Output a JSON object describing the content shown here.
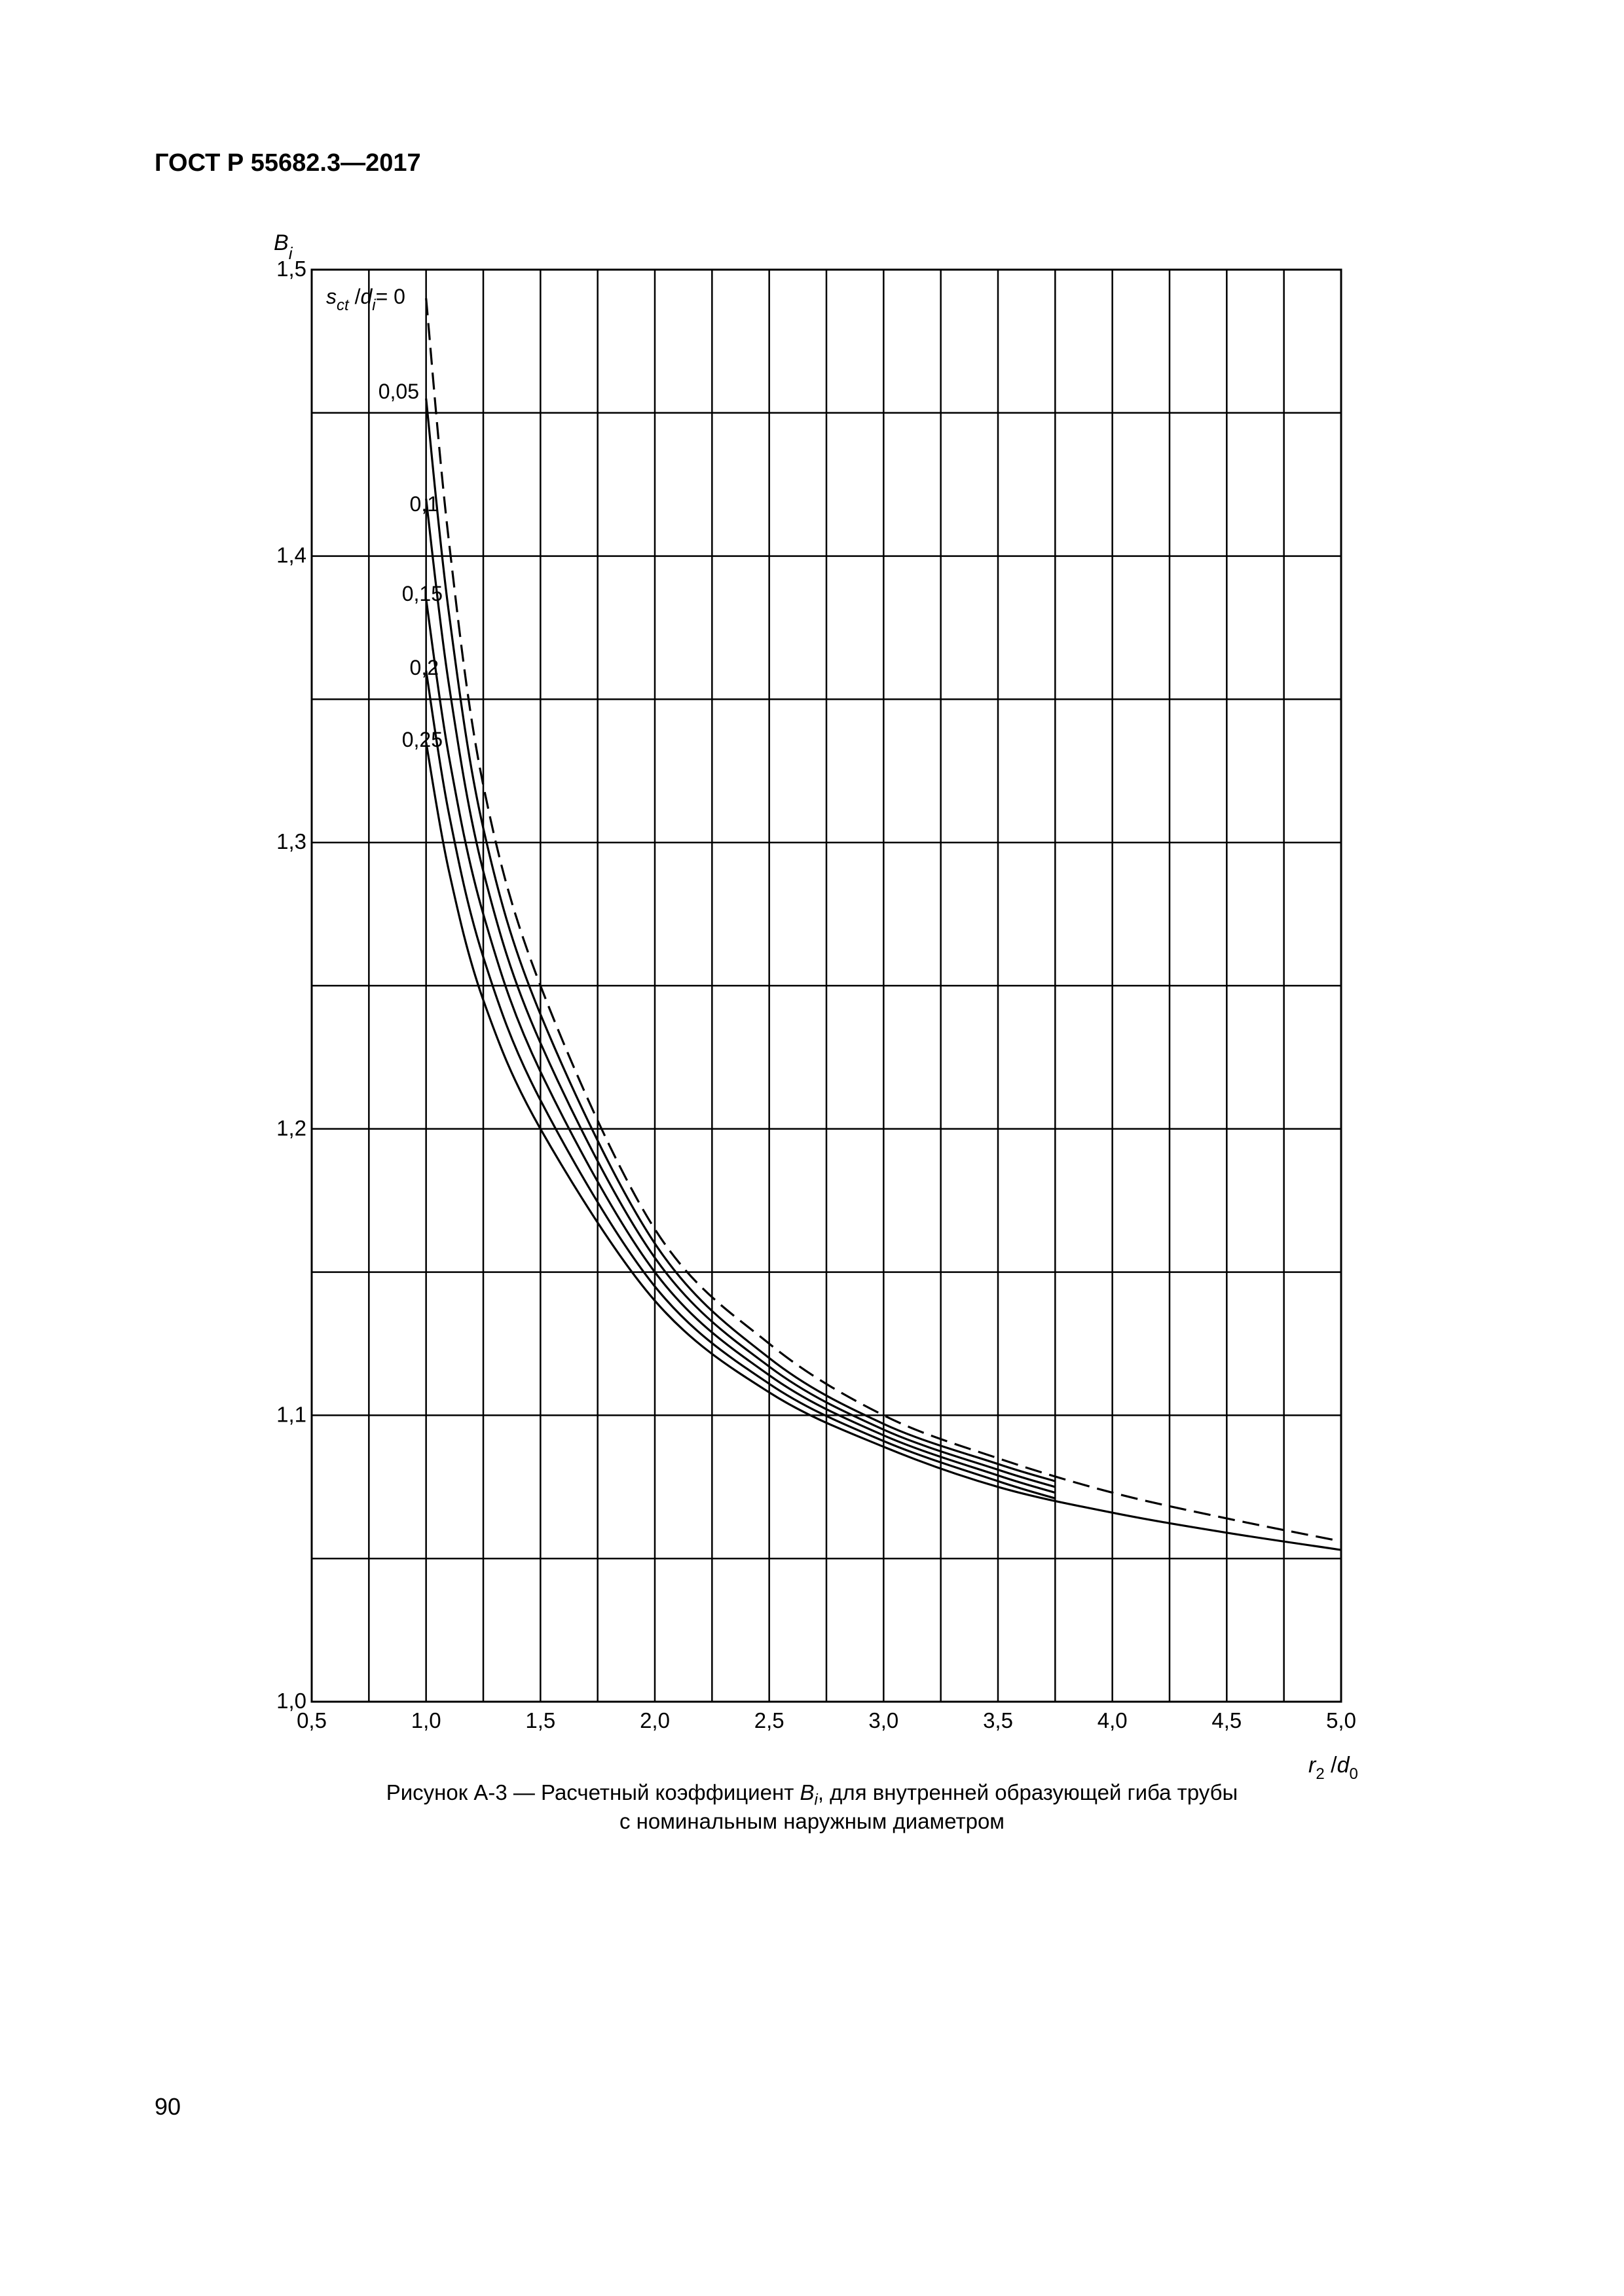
{
  "header": {
    "text": "ГОСТ Р 55682.3—2017"
  },
  "caption": {
    "line1_prefix": "Рисунок А-3 — Расчетный коэффициент ",
    "line1_symbol": "B",
    "line1_symbol_sub": "i",
    "line1_suffix": ", для внутренней образующей гиба трубы",
    "line2": "с номинальным наружным диаметром"
  },
  "page_number": "90",
  "chart_data": {
    "type": "line",
    "y_axis": {
      "symbol": "B",
      "sub": "i"
    },
    "x_axis": {
      "num": "r",
      "num_sub": "2",
      "den": "d",
      "den_sub": "0"
    },
    "legend_param": {
      "s": "s",
      "s_sub": "ct",
      "d": "d",
      "d_sub": "i",
      "eq": "= 0"
    },
    "xlim": [
      0.5,
      5.0
    ],
    "ylim": [
      1.0,
      1.5
    ],
    "x_tick_labels": [
      "0,5",
      "1,0",
      "1,5",
      "2,0",
      "2,5",
      "3,0",
      "3,5",
      "4,0",
      "4,5",
      "5,0"
    ],
    "y_tick_labels": [
      "1,0",
      "1,1",
      "1,2",
      "1,3",
      "1,4",
      "1,5"
    ],
    "grid": true,
    "series": [
      {
        "name": "0",
        "label": "",
        "style": "dashed",
        "x": [
          1.0,
          1.1,
          1.25,
          1.5,
          2.0,
          2.5,
          3.0,
          3.5,
          4.0,
          4.5,
          5.0
        ],
        "y": [
          1.49,
          1.405,
          1.32,
          1.25,
          1.165,
          1.125,
          1.1,
          1.085,
          1.073,
          1.064,
          1.056
        ]
      },
      {
        "name": "0,05",
        "label": "0,05",
        "style": "solid",
        "x": [
          1.0,
          1.1,
          1.25,
          1.5,
          2.0,
          2.5,
          3.0,
          3.5,
          3.75
        ],
        "y": [
          1.455,
          1.38,
          1.305,
          1.24,
          1.16,
          1.12,
          1.097,
          1.083,
          1.077
        ]
      },
      {
        "name": "0,1",
        "label": "0,1",
        "style": "solid",
        "x": [
          1.0,
          1.1,
          1.25,
          1.5,
          2.0,
          2.5,
          3.0,
          3.5,
          3.75
        ],
        "y": [
          1.42,
          1.355,
          1.29,
          1.23,
          1.155,
          1.117,
          1.095,
          1.081,
          1.075
        ]
      },
      {
        "name": "0,15",
        "label": "0,15",
        "style": "solid",
        "x": [
          1.0,
          1.1,
          1.25,
          1.5,
          2.0,
          2.5,
          3.0,
          3.5,
          3.75
        ],
        "y": [
          1.385,
          1.33,
          1.275,
          1.22,
          1.15,
          1.114,
          1.093,
          1.079,
          1.073
        ]
      },
      {
        "name": "0,2",
        "label": "0,2",
        "style": "solid",
        "x": [
          1.0,
          1.1,
          1.25,
          1.5,
          2.0,
          2.5,
          3.0,
          3.5,
          3.75
        ],
        "y": [
          1.36,
          1.31,
          1.26,
          1.21,
          1.145,
          1.111,
          1.091,
          1.077,
          1.071
        ]
      },
      {
        "name": "0,25",
        "label": "0,25",
        "style": "solid",
        "x": [
          1.0,
          1.1,
          1.25,
          1.5,
          2.0,
          2.5,
          3.0,
          3.5,
          4.0,
          4.5,
          5.0
        ],
        "y": [
          1.335,
          1.29,
          1.245,
          1.2,
          1.14,
          1.108,
          1.089,
          1.075,
          1.066,
          1.059,
          1.053
        ]
      }
    ]
  }
}
